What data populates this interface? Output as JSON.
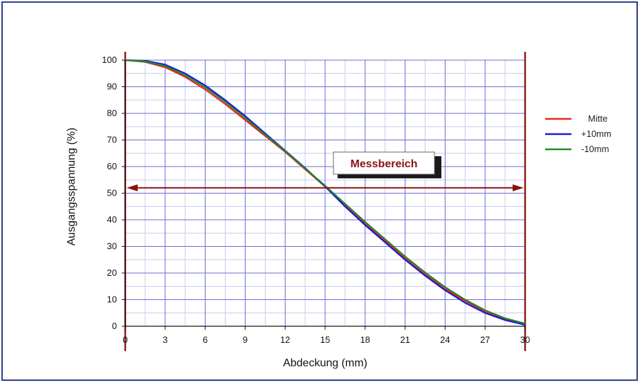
{
  "chart_data": {
    "type": "line",
    "title": "",
    "xlabel": "Abdeckung (mm)",
    "ylabel": "Ausgangsspannung (%)",
    "xlim": [
      0,
      30
    ],
    "ylim": [
      0,
      100
    ],
    "x_ticks": [
      0,
      3,
      6,
      9,
      12,
      15,
      18,
      21,
      24,
      27,
      30
    ],
    "y_ticks": [
      0,
      10,
      20,
      30,
      40,
      50,
      60,
      70,
      80,
      90,
      100
    ],
    "x_tick_labels": [
      "0",
      "3",
      "6",
      "9",
      "12",
      "15",
      "18",
      "21",
      "24",
      "27",
      "30"
    ],
    "y_tick_labels": [
      "0",
      "10",
      "20",
      "30",
      "40",
      "50",
      "60",
      "70",
      "80",
      "90",
      "100"
    ],
    "grid": true,
    "legend_position": "right",
    "series": [
      {
        "name": "Mitte",
        "color": "#e8231c",
        "x": [
          0,
          1.5,
          3,
          4.5,
          6,
          7.5,
          9,
          10.5,
          12,
          13.5,
          15,
          16.5,
          18,
          19.5,
          21,
          22.5,
          24,
          25.5,
          27,
          28.5,
          30
        ],
        "y": [
          100,
          99.3,
          97.3,
          93.7,
          89,
          83.5,
          77.5,
          71.5,
          65.5,
          59,
          52.5,
          45.5,
          38.5,
          32,
          25.5,
          19.5,
          14,
          9.5,
          5.5,
          2.8,
          0.8
        ]
      },
      {
        "name": "+10mm",
        "color": "#1a1ad6",
        "x": [
          0,
          1.5,
          3,
          4.5,
          6,
          7.5,
          9,
          10.5,
          12,
          13.5,
          15,
          16.5,
          18,
          19.5,
          21,
          22.5,
          24,
          25.5,
          27,
          28.5,
          30
        ],
        "y": [
          100,
          99.8,
          98.3,
          95,
          90.5,
          85,
          79,
          72.5,
          66,
          59.5,
          52.5,
          45,
          38,
          31.5,
          25,
          19,
          13.5,
          8.8,
          5,
          2.3,
          0.5
        ]
      },
      {
        "name": "-10mm",
        "color": "#1f8a2a",
        "x": [
          0,
          1.5,
          3,
          4.5,
          6,
          7.5,
          9,
          10.5,
          12,
          13.5,
          15,
          16.5,
          18,
          19.5,
          21,
          22.5,
          24,
          25.5,
          27,
          28.5,
          30
        ],
        "y": [
          100,
          99.5,
          97.8,
          94.3,
          89.8,
          84.3,
          78.3,
          72,
          65.8,
          59.3,
          52.8,
          46,
          39.2,
          32.7,
          26.2,
          20.2,
          14.7,
          10,
          6,
          3,
          1
        ]
      }
    ],
    "range_lines": {
      "x": [
        0,
        30
      ],
      "color": "#8b1a1a"
    },
    "annotation": {
      "text": "Messbereich",
      "arrow_y": 52,
      "color": "#8b1010"
    }
  }
}
